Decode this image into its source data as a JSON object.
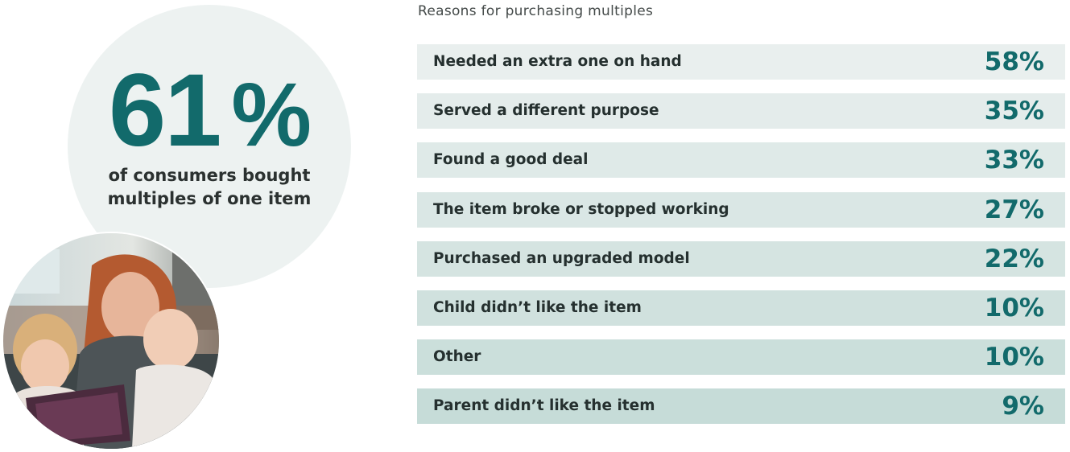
{
  "stat": {
    "number": "61",
    "percent_sign": "%",
    "caption_line1": "of consumers bought",
    "caption_line2": "multiples of one item"
  },
  "colors": {
    "accent": "#126a6b",
    "circle_bg": "#edf2f1",
    "bar_start": "#e9efee",
    "bar_end": "#c6dcd8"
  },
  "chart_data": {
    "type": "table",
    "title": "Reasons for purchasing multiples",
    "unit": "%",
    "categories": [
      "Needed an extra one on hand",
      "Served a different purpose",
      "Found a good deal",
      "The item broke or stopped working",
      "Purchased an upgraded model",
      "Child didn’t like the item",
      "Other",
      "Parent didn’t like the item"
    ],
    "values": [
      58,
      35,
      33,
      27,
      22,
      10,
      10,
      9
    ],
    "labels": [
      "58%",
      "35%",
      "33%",
      "27%",
      "22%",
      "10%",
      "10%",
      "9%"
    ]
  }
}
